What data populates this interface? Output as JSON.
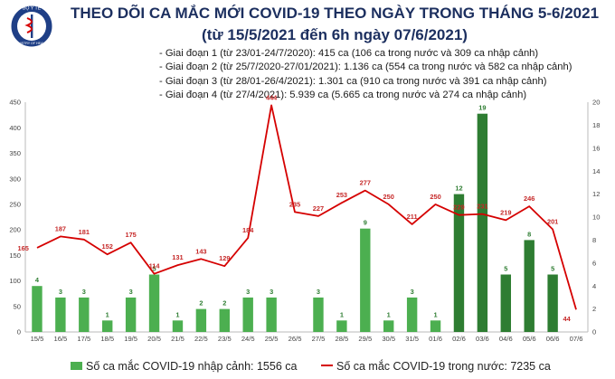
{
  "header": {
    "logo_text": "BỘ Y TẾ MINISTRY OF HEALTH",
    "title": "THEO DÕI CA MẮC MỚI COVID-19 THEO NGÀY TRONG THÁNG 5-6/2021",
    "subtitle": "(từ 15/5/2021 đến 6h ngày 07/6/2021)"
  },
  "phases": [
    "- Giai đoạn 1 (từ 23/01-24/7/2020): 415 ca (106 ca trong nước và 309 ca nhập cảnh)",
    "- Giai đoạn 2 (từ 25/7/2020-27/01/2021): 1.136 ca (554 ca trong nước và 582 ca nhập cảnh)",
    "- Giai đoạn 3 (từ 28/01-26/4/2021): 1.301 ca (910 ca trong nước và 391 ca nhập cảnh)",
    "- Giai đoạn 4 (từ 27/4/2021): 5.939 ca (5.665 ca trong nước và 274 ca nhập cảnh)"
  ],
  "legend": {
    "bar_label": "Số ca mắc COVID-19 nhập cảnh: 1556 ca",
    "line_label": "Số ca mắc COVID-19 trong nước: 7235 ca"
  },
  "colors": {
    "bar": "#4caf50",
    "bar_highlight": "#2e7d32",
    "line": "#d50000",
    "axis": "#bbbbbb"
  },
  "chart_data": {
    "type": "bar",
    "categories": [
      "15/5",
      "16/5",
      "17/5",
      "18/5",
      "19/5",
      "20/5",
      "21/5",
      "22/5",
      "23/5",
      "24/5",
      "25/5",
      "26/5",
      "27/5",
      "28/5",
      "29/5",
      "30/5",
      "31/5",
      "01/6",
      "02/6",
      "03/6",
      "04/6",
      "05/6",
      "06/6",
      "07/6"
    ],
    "series": [
      {
        "type": "bar",
        "axis": "right",
        "values": [
          4,
          3,
          3,
          1,
          3,
          5,
          1,
          2,
          2,
          3,
          3,
          0,
          3,
          1,
          9,
          1,
          3,
          1,
          12,
          19,
          5,
          8,
          5,
          0
        ],
        "labels": [
          "4",
          "3",
          "3",
          "1",
          "3",
          "5",
          "1",
          "2",
          "2",
          "3",
          "3",
          "",
          "3",
          "1",
          "9",
          "1",
          "3",
          "1",
          "12",
          "19",
          "5",
          "8",
          "5",
          ""
        ],
        "highlighted": [
          false,
          false,
          false,
          false,
          false,
          false,
          false,
          false,
          false,
          false,
          false,
          false,
          false,
          false,
          false,
          false,
          false,
          false,
          true,
          true,
          true,
          true,
          true,
          false
        ]
      },
      {
        "type": "line",
        "axis": "left",
        "values": [
          165,
          187,
          181,
          152,
          175,
          114,
          131,
          143,
          129,
          184,
          444,
          235,
          227,
          253,
          277,
          250,
          211,
          250,
          229,
          231,
          219,
          246,
          201,
          44
        ],
        "labels": [
          "165",
          "187",
          "181",
          "152",
          "175",
          "114",
          "131",
          "143",
          "129",
          "184",
          "444",
          "235",
          "227",
          "253",
          "277",
          "250",
          "211",
          "250",
          "229",
          "231",
          "219",
          "246",
          "201",
          "44"
        ]
      }
    ],
    "y_left": {
      "min": 0,
      "max": 450,
      "ticks": [
        "0",
        "50",
        "100",
        "150",
        "200",
        "250",
        "300",
        "350",
        "400",
        "450"
      ]
    },
    "y_right": {
      "min": 0,
      "max": 20,
      "ticks": [
        "0",
        "2",
        "4",
        "6",
        "8",
        "10",
        "12",
        "14",
        "16",
        "18",
        "20"
      ]
    }
  }
}
